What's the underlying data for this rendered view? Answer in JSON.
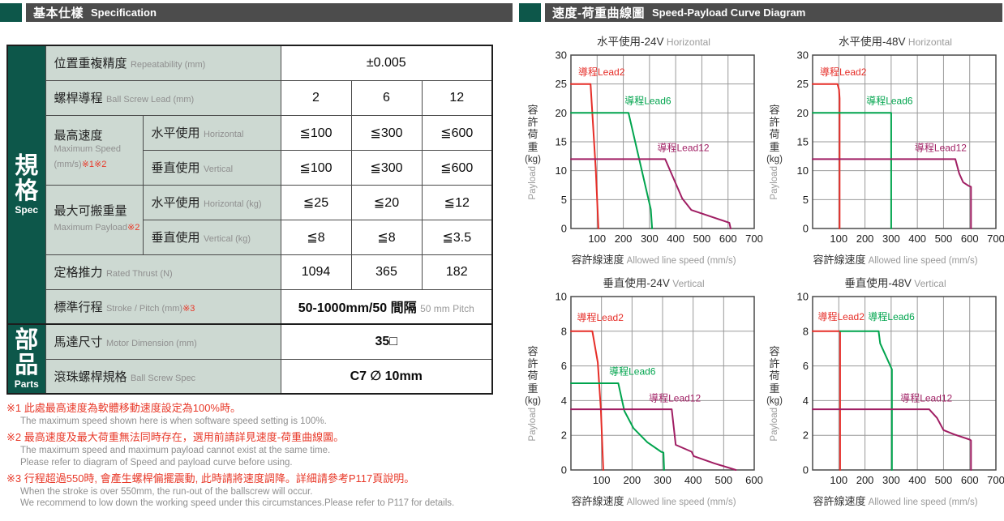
{
  "left_header": {
    "zh": "基本仕樣",
    "en": "Specification"
  },
  "right_header": {
    "zh": "速度-荷重曲線圖",
    "en": "Speed-Payload Curve Diagram"
  },
  "colors": {
    "accent_green": "#0d574a",
    "header_gray": "#4c4c4c",
    "label_cell_bg": "#cdd9d2",
    "note_red": "#e83828",
    "lead2_red": "#e62e28",
    "lead6_green": "#00a44d",
    "lead12_purple": "#a01e63"
  },
  "table": {
    "sidebar": {
      "spec_zh": "規格",
      "spec_en": "Spec",
      "parts_zh": "部品",
      "parts_en": "Parts"
    },
    "rows": {
      "repeat": {
        "zh": "位置重複精度",
        "en": "Repeatability (mm)",
        "value": "±0.005"
      },
      "lead": {
        "zh": "螺桿導程",
        "en": "Ball Screw Lead (mm)",
        "v1": "2",
        "v2": "6",
        "v3": "12"
      },
      "max_speed": {
        "zh": "最高速度",
        "en_line1": "Maximum Speed",
        "en_line2": "(mm/s)",
        "note": "※1※2",
        "horizontal": {
          "zh": "水平使用",
          "en": "Horizontal",
          "v1": "≦100",
          "v2": "≦300",
          "v3": "≦600"
        },
        "vertical": {
          "zh": "垂直使用",
          "en": "Vertical",
          "v1": "≦100",
          "v2": "≦300",
          "v3": "≦600"
        }
      },
      "max_payload": {
        "zh": "最大可搬重量",
        "en": "Maximum Payload",
        "note": "※2",
        "horizontal": {
          "zh": "水平使用",
          "en": "Horizontal (kg)",
          "v1": "≦25",
          "v2": "≦20",
          "v3": "≦12"
        },
        "vertical": {
          "zh": "垂直使用",
          "en": "Vertical (kg)",
          "v1": "≦8",
          "v2": "≦8",
          "v3": "≦3.5"
        }
      },
      "thrust": {
        "zh": "定格推力",
        "en": "Rated Thrust (N)",
        "v1": "1094",
        "v2": "365",
        "v3": "182"
      },
      "stroke": {
        "zh": "標準行程",
        "en": "Stroke / Pitch (mm)",
        "note": "※3",
        "value_main": "50-1000mm/50 間隔",
        "value_sub": "50 mm Pitch"
      },
      "motor": {
        "zh": "馬達尺寸",
        "en": "Motor Dimension (mm)",
        "value": "35□"
      },
      "ballscrew": {
        "zh": "滾珠螺桿規格",
        "en": "Ball Screw Spec",
        "value": "C7 ∅ 10mm"
      }
    }
  },
  "footnotes": [
    {
      "zh": "※1 此處最高速度為軟體移動速度設定為100%時。",
      "en": [
        "The maximum speed shown here is when software speed setting is 100%."
      ]
    },
    {
      "zh": "※2 最高速度及最大荷重無法同時存在，選用前請詳見速度-荷重曲線圖。",
      "en": [
        "The maximum speed and maximum payload cannot exist at the same time.",
        "Please refer to diagram of Speed and payload curve before using."
      ]
    },
    {
      "zh": "※3 行程超過550時, 會產生螺桿偏擺震動, 此時請將速度調降。詳細請參考P117頁說明。",
      "en": [
        "When the stroke is over 550mm, the run-out of the ballscrew will occur.",
        "We recommend to low down the working speed under this circumstances.Please refer to P117 for details."
      ]
    }
  ],
  "chart_data": [
    {
      "id": "horizontal-24v",
      "type": "line",
      "title_zh": "水平使用-24V",
      "title_en": "Horizontal",
      "xlabel_zh": "容許線速度",
      "xlabel_en": "Allowed line speed (mm/s)",
      "ylabel_zh": "容許荷重",
      "ylabel_unit": "(kg)",
      "ylabel_en": "Payload",
      "xlim": [
        0,
        700
      ],
      "ylim": [
        0,
        30
      ],
      "grid": true,
      "xticks": [
        100,
        200,
        300,
        400,
        500,
        600,
        700
      ],
      "yticks": [
        0,
        5,
        10,
        15,
        20,
        25,
        30
      ],
      "series": [
        {
          "name": "導程Lead2",
          "color": "#e62e28",
          "label_pos": [
            28,
            26.5
          ],
          "points": [
            [
              0,
              25
            ],
            [
              75,
              25
            ],
            [
              95,
              10
            ],
            [
              105,
              0
            ]
          ]
        },
        {
          "name": "導程Lead6",
          "color": "#00a44d",
          "label_pos": [
            205,
            21.5
          ],
          "points": [
            [
              0,
              20
            ],
            [
              220,
              20
            ],
            [
              305,
              3.3
            ],
            [
              310,
              0
            ]
          ]
        },
        {
          "name": "導程Lead12",
          "color": "#a01e63",
          "label_pos": [
            330,
            13.4
          ],
          "points": [
            [
              0,
              12
            ],
            [
              360,
              12
            ],
            [
              425,
              5.2
            ],
            [
              460,
              3.2
            ],
            [
              605,
              1
            ],
            [
              610,
              0
            ]
          ]
        }
      ]
    },
    {
      "id": "horizontal-48v",
      "type": "line",
      "title_zh": "水平使用-48V",
      "title_en": "Horizontal",
      "xlabel_zh": "容許線速度",
      "xlabel_en": "Allowed line speed (mm/s)",
      "ylabel_zh": "容許荷重",
      "ylabel_unit": "(kg)",
      "ylabel_en": "Payload",
      "xlim": [
        0,
        700
      ],
      "ylim": [
        0,
        30
      ],
      "grid": true,
      "xticks": [
        100,
        200,
        300,
        400,
        500,
        600,
        700
      ],
      "yticks": [
        0,
        5,
        10,
        15,
        20,
        25,
        30
      ],
      "series": [
        {
          "name": "導程Lead2",
          "color": "#e62e28",
          "label_pos": [
            28,
            26.5
          ],
          "points": [
            [
              0,
              25
            ],
            [
              95,
              25
            ],
            [
              101,
              24
            ],
            [
              103,
              22.5
            ],
            [
              103,
              0
            ]
          ]
        },
        {
          "name": "導程Lead6",
          "color": "#00a44d",
          "label_pos": [
            205,
            21.5
          ],
          "points": [
            [
              0,
              20
            ],
            [
              300,
              20
            ],
            [
              300,
              0
            ]
          ]
        },
        {
          "name": "導程Lead12",
          "color": "#a01e63",
          "label_pos": [
            390,
            13.4
          ],
          "points": [
            [
              0,
              12
            ],
            [
              545,
              12
            ],
            [
              560,
              9.5
            ],
            [
              575,
              8
            ],
            [
              595,
              7.4
            ],
            [
              605,
              7.2
            ],
            [
              605,
              0
            ]
          ]
        }
      ]
    },
    {
      "id": "vertical-24v",
      "type": "line",
      "title_zh": "垂直使用-24V",
      "title_en": "Vertical",
      "xlabel_zh": "容許線速度",
      "xlabel_en": "Allowed line speed (mm/s)",
      "ylabel_zh": "容許荷重",
      "ylabel_unit": "(kg)",
      "ylabel_en": "Payload",
      "xlim": [
        0,
        600
      ],
      "ylim": [
        0,
        10
      ],
      "grid": true,
      "xticks": [
        100,
        200,
        300,
        400,
        500,
        600
      ],
      "yticks": [
        0,
        2,
        4,
        6,
        8,
        10
      ],
      "series": [
        {
          "name": "導程Lead2",
          "color": "#e62e28",
          "label_pos": [
            20,
            8.6
          ],
          "points": [
            [
              0,
              8
            ],
            [
              70,
              8
            ],
            [
              88,
              6.2
            ],
            [
              98,
              3.5
            ],
            [
              106,
              0
            ]
          ]
        },
        {
          "name": "導程Lead6",
          "color": "#00a44d",
          "label_pos": [
            125,
            5.5
          ],
          "points": [
            [
              0,
              5
            ],
            [
              155,
              5
            ],
            [
              175,
              3.4
            ],
            [
              205,
              2.4
            ],
            [
              250,
              1.6
            ],
            [
              295,
              1.05
            ],
            [
              303,
              1
            ],
            [
              305,
              0
            ]
          ]
        },
        {
          "name": "導程Lead12",
          "color": "#a01e63",
          "label_pos": [
            255,
            3.95
          ],
          "points": [
            [
              0,
              3.5
            ],
            [
              330,
              3.5
            ],
            [
              343,
              1.45
            ],
            [
              395,
              1.05
            ],
            [
              402,
              0.8
            ],
            [
              470,
              0.38
            ],
            [
              540,
              0
            ]
          ]
        }
      ]
    },
    {
      "id": "vertical-48v",
      "type": "line",
      "title_zh": "垂直使用-48V",
      "title_en": "Vertical",
      "xlabel_zh": "容許線速度",
      "xlabel_en": "Allowed line speed (mm/s)",
      "ylabel_zh": "容許荷重",
      "ylabel_unit": "(kg)",
      "ylabel_en": "Payload",
      "xlim": [
        0,
        700
      ],
      "ylim": [
        0,
        10
      ],
      "grid": true,
      "xticks": [
        100,
        200,
        300,
        400,
        500,
        600,
        700
      ],
      "yticks": [
        0,
        2,
        4,
        6,
        8,
        10
      ],
      "series": [
        {
          "name": "導程Lead2",
          "color": "#e62e28",
          "label_pos": [
            20,
            8.65
          ],
          "points": [
            [
              0,
              8
            ],
            [
              105,
              8
            ],
            [
              105,
              0
            ]
          ]
        },
        {
          "name": "導程Lead6",
          "color": "#00a44d",
          "label_pos": [
            212,
            8.65
          ],
          "points": [
            [
              105,
              8
            ],
            [
              252,
              8
            ],
            [
              258,
              7.3
            ],
            [
              303,
              5.8
            ],
            [
              303,
              0
            ]
          ]
        },
        {
          "name": "導程Lead12",
          "color": "#a01e63",
          "label_pos": [
            335,
            3.95
          ],
          "points": [
            [
              0,
              3.5
            ],
            [
              445,
              3.5
            ],
            [
              475,
              3
            ],
            [
              500,
              2.3
            ],
            [
              540,
              2.05
            ],
            [
              600,
              1.75
            ],
            [
              605,
              1.7
            ],
            [
              605,
              0
            ]
          ]
        }
      ]
    }
  ]
}
